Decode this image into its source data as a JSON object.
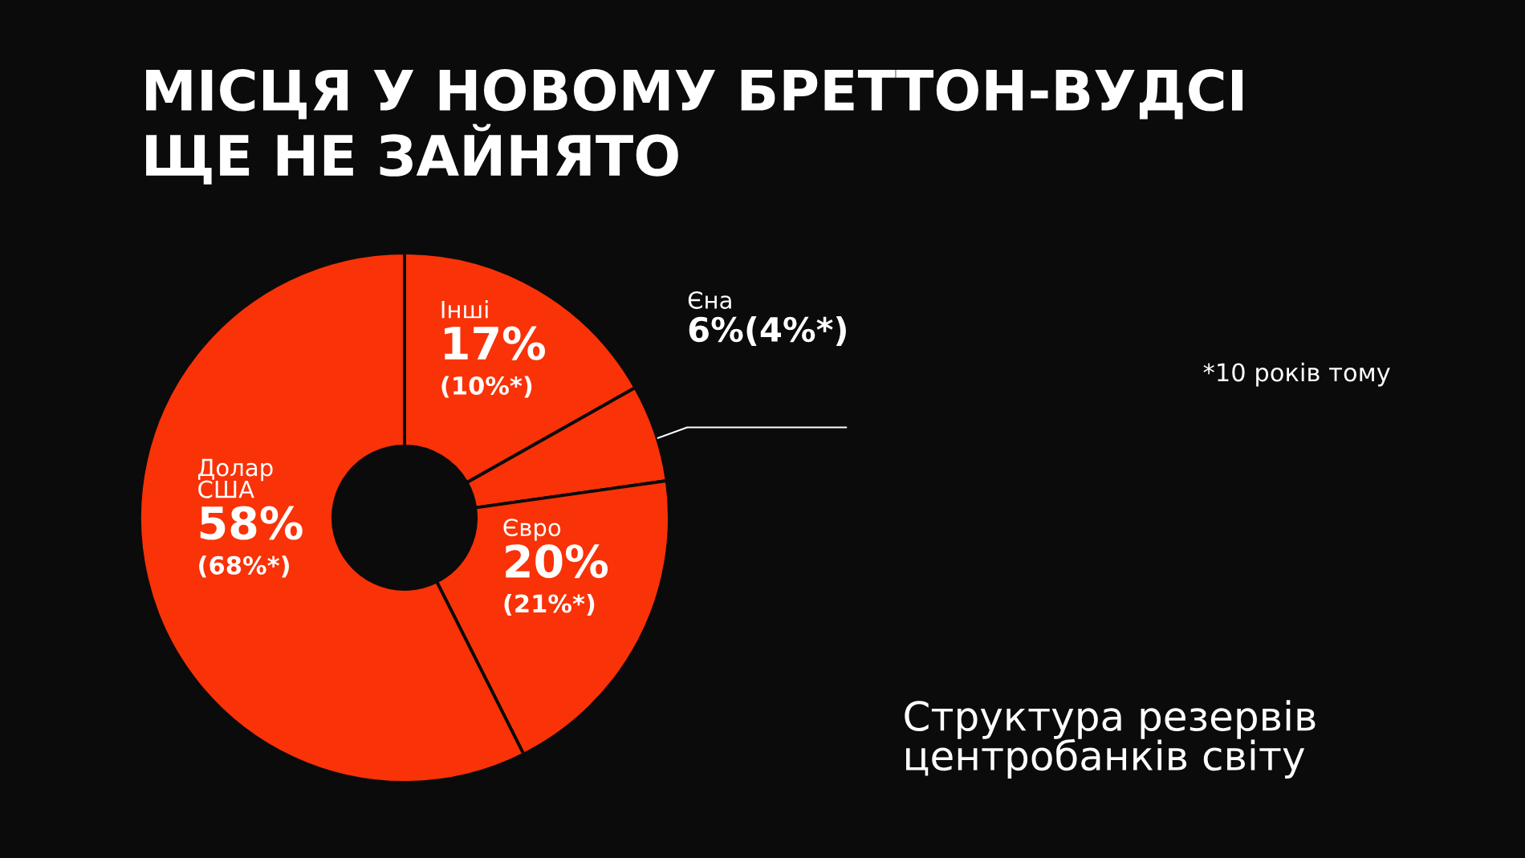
{
  "chart_data": {
    "type": "donut",
    "title": "МІСЦЯ У НОВОМУ БРЕТТОН-ВУДСІ\nЩЕ НЕ ЗАЙНЯТО",
    "categories": [
      "Інші",
      "Єна",
      "Євро",
      "Долар\nСША"
    ],
    "values": [
      17,
      6,
      20,
      58
    ],
    "value_labels": [
      "17%\n(10%*)",
      "6%(4%*)",
      "20%\n(21%*)",
      "58%\n(68%*)"
    ],
    "colors": [
      "#f93208",
      "#f93208",
      "#f93208",
      "#f93208"
    ],
    "annotations": [
      "*10 років тому",
      "Структура резервів\nцентробанків світу"
    ],
    "legend": false
  }
}
